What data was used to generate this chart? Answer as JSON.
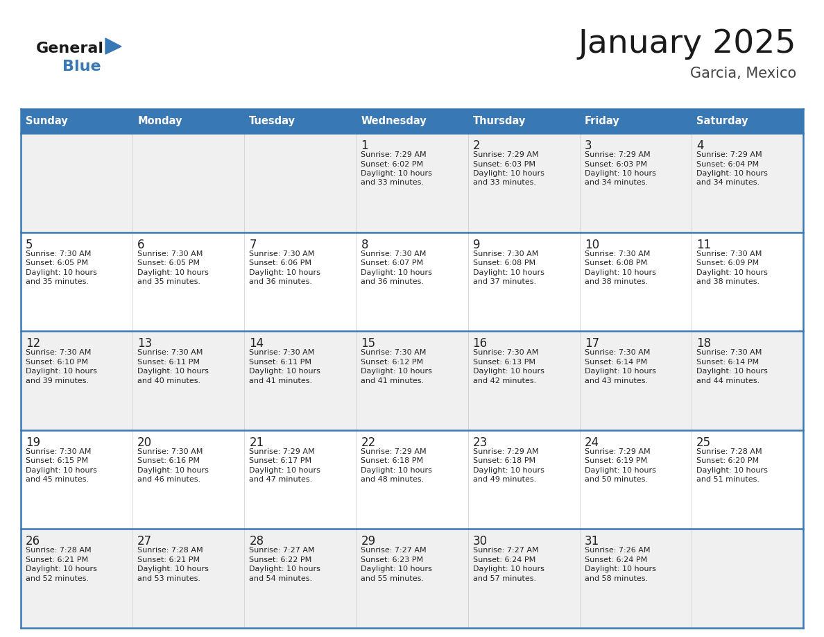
{
  "title": "January 2025",
  "subtitle": "Garcia, Mexico",
  "days_of_week": [
    "Sunday",
    "Monday",
    "Tuesday",
    "Wednesday",
    "Thursday",
    "Friday",
    "Saturday"
  ],
  "header_bg": "#3878b4",
  "header_text": "#ffffff",
  "row_bg_light": "#f0f0f0",
  "row_bg_white": "#ffffff",
  "cell_text_color": "#222222",
  "border_color": "#3878b4",
  "row_border_color": "#3878b4",
  "title_color": "#1a1a1a",
  "subtitle_color": "#444444",
  "logo_general_color": "#1a1a1a",
  "logo_blue_color": "#3878b4",
  "calendar_data": [
    [
      {
        "day": "",
        "sunrise": "",
        "sunset": "",
        "daylight": ""
      },
      {
        "day": "",
        "sunrise": "",
        "sunset": "",
        "daylight": ""
      },
      {
        "day": "",
        "sunrise": "",
        "sunset": "",
        "daylight": ""
      },
      {
        "day": "1",
        "sunrise": "7:29 AM",
        "sunset": "6:02 PM",
        "daylight": "10 hours and 33 minutes."
      },
      {
        "day": "2",
        "sunrise": "7:29 AM",
        "sunset": "6:03 PM",
        "daylight": "10 hours and 33 minutes."
      },
      {
        "day": "3",
        "sunrise": "7:29 AM",
        "sunset": "6:03 PM",
        "daylight": "10 hours and 34 minutes."
      },
      {
        "day": "4",
        "sunrise": "7:29 AM",
        "sunset": "6:04 PM",
        "daylight": "10 hours and 34 minutes."
      }
    ],
    [
      {
        "day": "5",
        "sunrise": "7:30 AM",
        "sunset": "6:05 PM",
        "daylight": "10 hours and 35 minutes."
      },
      {
        "day": "6",
        "sunrise": "7:30 AM",
        "sunset": "6:05 PM",
        "daylight": "10 hours and 35 minutes."
      },
      {
        "day": "7",
        "sunrise": "7:30 AM",
        "sunset": "6:06 PM",
        "daylight": "10 hours and 36 minutes."
      },
      {
        "day": "8",
        "sunrise": "7:30 AM",
        "sunset": "6:07 PM",
        "daylight": "10 hours and 36 minutes."
      },
      {
        "day": "9",
        "sunrise": "7:30 AM",
        "sunset": "6:08 PM",
        "daylight": "10 hours and 37 minutes."
      },
      {
        "day": "10",
        "sunrise": "7:30 AM",
        "sunset": "6:08 PM",
        "daylight": "10 hours and 38 minutes."
      },
      {
        "day": "11",
        "sunrise": "7:30 AM",
        "sunset": "6:09 PM",
        "daylight": "10 hours and 38 minutes."
      }
    ],
    [
      {
        "day": "12",
        "sunrise": "7:30 AM",
        "sunset": "6:10 PM",
        "daylight": "10 hours and 39 minutes."
      },
      {
        "day": "13",
        "sunrise": "7:30 AM",
        "sunset": "6:11 PM",
        "daylight": "10 hours and 40 minutes."
      },
      {
        "day": "14",
        "sunrise": "7:30 AM",
        "sunset": "6:11 PM",
        "daylight": "10 hours and 41 minutes."
      },
      {
        "day": "15",
        "sunrise": "7:30 AM",
        "sunset": "6:12 PM",
        "daylight": "10 hours and 41 minutes."
      },
      {
        "day": "16",
        "sunrise": "7:30 AM",
        "sunset": "6:13 PM",
        "daylight": "10 hours and 42 minutes."
      },
      {
        "day": "17",
        "sunrise": "7:30 AM",
        "sunset": "6:14 PM",
        "daylight": "10 hours and 43 minutes."
      },
      {
        "day": "18",
        "sunrise": "7:30 AM",
        "sunset": "6:14 PM",
        "daylight": "10 hours and 44 minutes."
      }
    ],
    [
      {
        "day": "19",
        "sunrise": "7:30 AM",
        "sunset": "6:15 PM",
        "daylight": "10 hours and 45 minutes."
      },
      {
        "day": "20",
        "sunrise": "7:30 AM",
        "sunset": "6:16 PM",
        "daylight": "10 hours and 46 minutes."
      },
      {
        "day": "21",
        "sunrise": "7:29 AM",
        "sunset": "6:17 PM",
        "daylight": "10 hours and 47 minutes."
      },
      {
        "day": "22",
        "sunrise": "7:29 AM",
        "sunset": "6:18 PM",
        "daylight": "10 hours and 48 minutes."
      },
      {
        "day": "23",
        "sunrise": "7:29 AM",
        "sunset": "6:18 PM",
        "daylight": "10 hours and 49 minutes."
      },
      {
        "day": "24",
        "sunrise": "7:29 AM",
        "sunset": "6:19 PM",
        "daylight": "10 hours and 50 minutes."
      },
      {
        "day": "25",
        "sunrise": "7:28 AM",
        "sunset": "6:20 PM",
        "daylight": "10 hours and 51 minutes."
      }
    ],
    [
      {
        "day": "26",
        "sunrise": "7:28 AM",
        "sunset": "6:21 PM",
        "daylight": "10 hours and 52 minutes."
      },
      {
        "day": "27",
        "sunrise": "7:28 AM",
        "sunset": "6:21 PM",
        "daylight": "10 hours and 53 minutes."
      },
      {
        "day": "28",
        "sunrise": "7:27 AM",
        "sunset": "6:22 PM",
        "daylight": "10 hours and 54 minutes."
      },
      {
        "day": "29",
        "sunrise": "7:27 AM",
        "sunset": "6:23 PM",
        "daylight": "10 hours and 55 minutes."
      },
      {
        "day": "30",
        "sunrise": "7:27 AM",
        "sunset": "6:24 PM",
        "daylight": "10 hours and 57 minutes."
      },
      {
        "day": "31",
        "sunrise": "7:26 AM",
        "sunset": "6:24 PM",
        "daylight": "10 hours and 58 minutes."
      },
      {
        "day": "",
        "sunrise": "",
        "sunset": "",
        "daylight": ""
      }
    ]
  ]
}
